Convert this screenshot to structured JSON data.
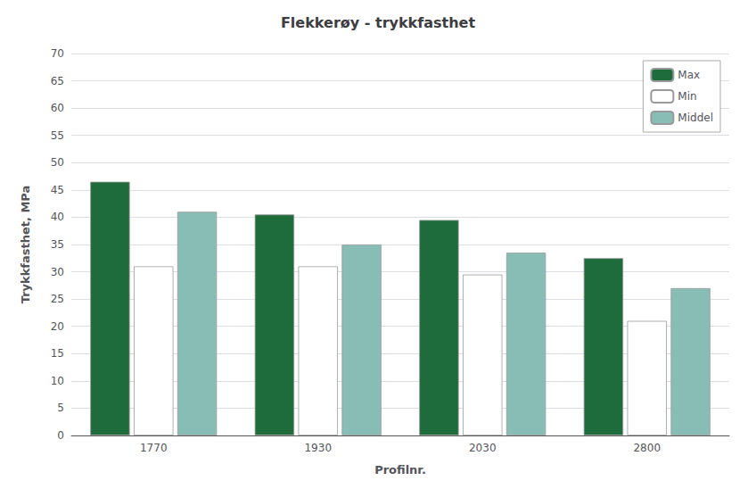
{
  "chart_data": {
    "type": "bar",
    "title": "Flekkerøy - trykkfasthet",
    "xlabel": "Profilnr.",
    "ylabel": "Trykkfasthet, MPa",
    "categories": [
      "1770",
      "1930",
      "2030",
      "2800"
    ],
    "series": [
      {
        "name": "Max",
        "color": "#1e6b3c",
        "values": [
          46.5,
          40.5,
          39.5,
          32.5
        ]
      },
      {
        "name": "Min",
        "color": "#ffffff",
        "values": [
          31.0,
          31.0,
          29.5,
          21.0
        ]
      },
      {
        "name": "Middel",
        "color": "#88bdb5",
        "values": [
          41.0,
          35.0,
          33.5,
          27.0
        ]
      }
    ],
    "ylim": [
      0,
      70
    ],
    "yticks": [
      0,
      5,
      10,
      15,
      20,
      25,
      30,
      35,
      40,
      45,
      50,
      55,
      60,
      65,
      70
    ],
    "grid": true,
    "legend": "upper right"
  }
}
